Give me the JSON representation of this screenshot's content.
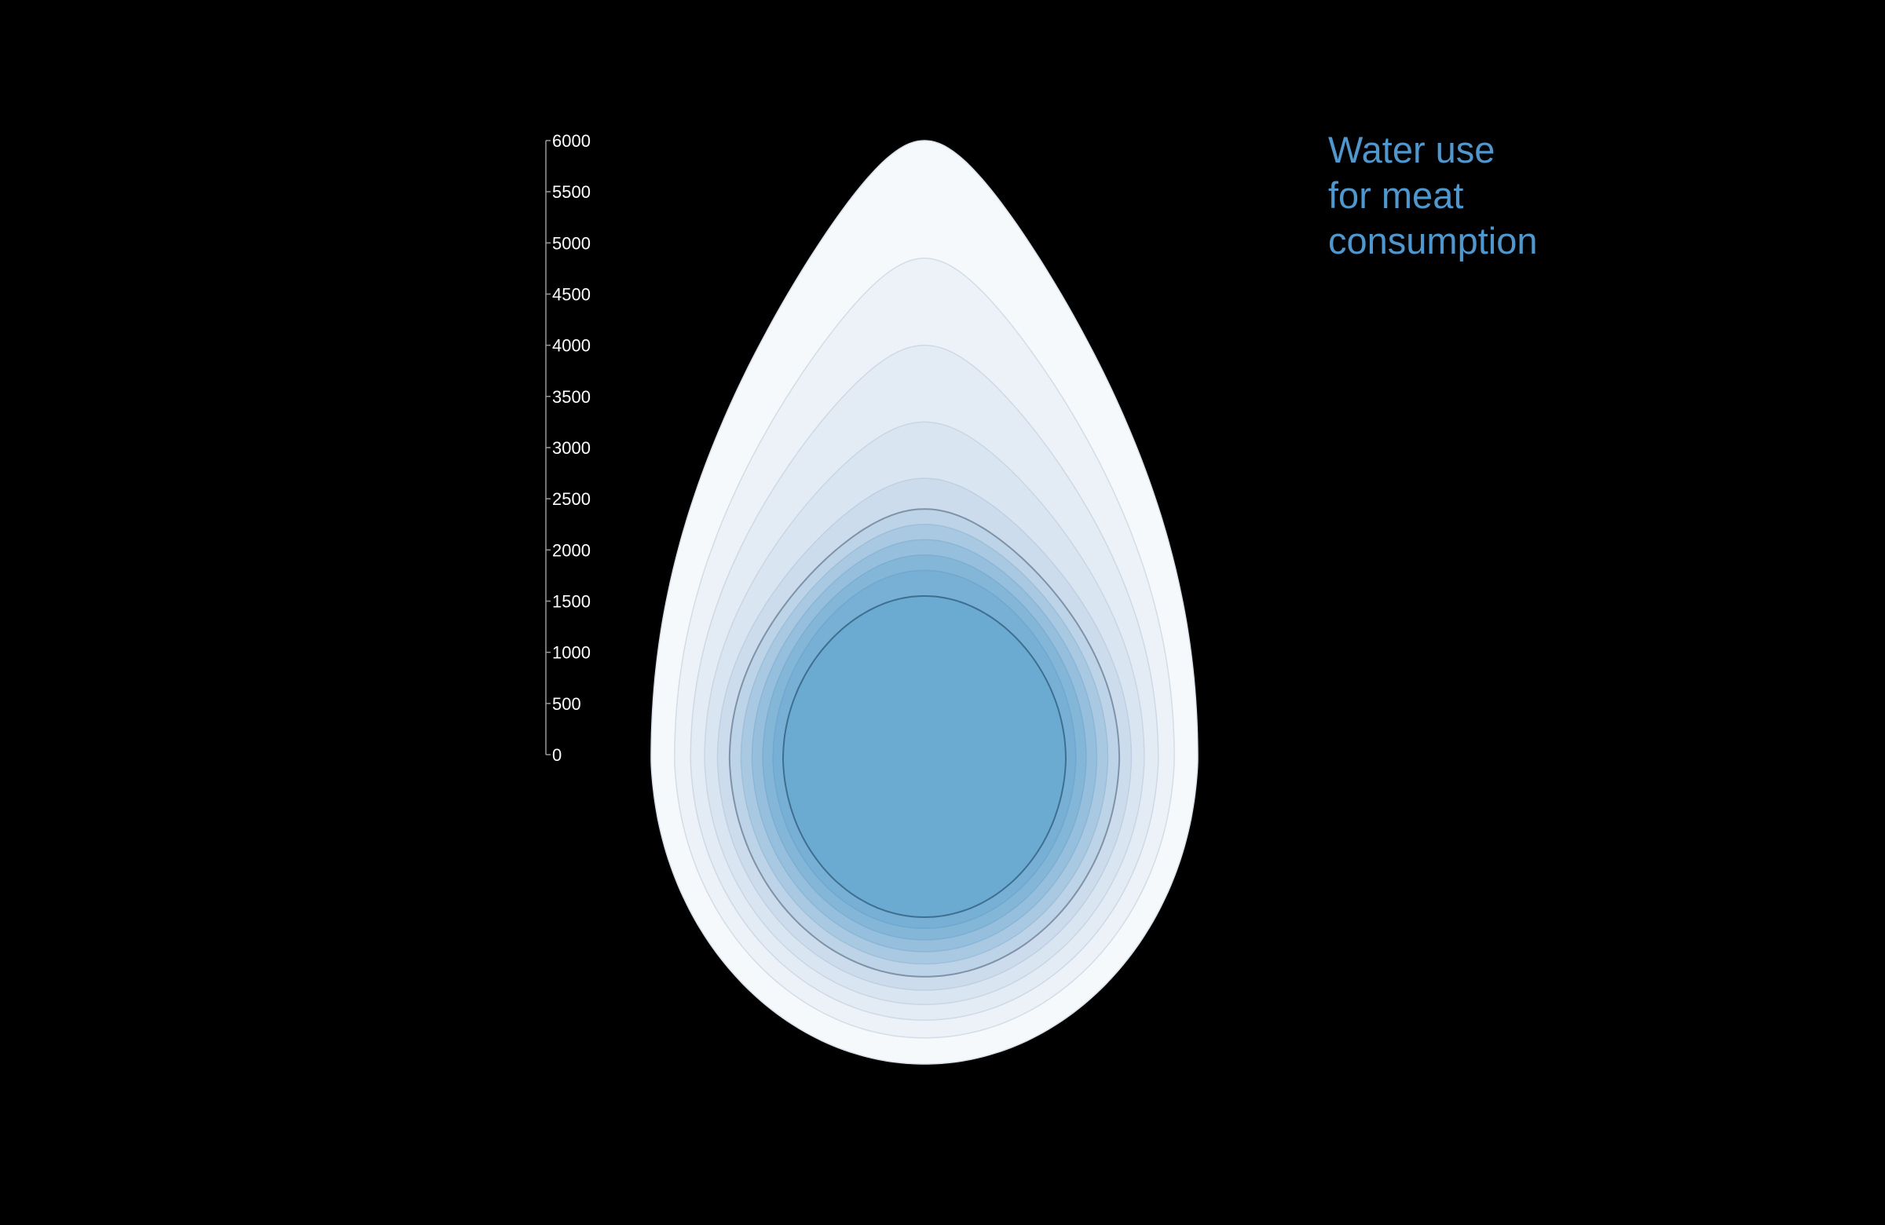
{
  "chart_data": {
    "type": "area",
    "title_lines": [
      "Water use",
      "for meat",
      "consumption"
    ],
    "title_color": "#4f97cc",
    "background": "#000000",
    "axis": {
      "ticks": [
        0,
        500,
        1000,
        1500,
        2000,
        2500,
        3000,
        3500,
        4000,
        4500,
        5000,
        5500,
        6000
      ],
      "ylim": [
        0,
        6000
      ]
    },
    "contour_levels": [
      {
        "top": 6000,
        "fill": "#f5f9fc",
        "stroke": "#d9e0e8"
      },
      {
        "top": 4850,
        "fill": "#edf2f8",
        "stroke": "#d4dce6"
      },
      {
        "top": 4000,
        "fill": "#e3ecf5",
        "stroke": "#cfd9e5"
      },
      {
        "top": 3250,
        "fill": "#d9e5f1",
        "stroke": "#c9d6e4"
      },
      {
        "top": 2700,
        "fill": "#ccdcec",
        "stroke": "#c0d0e2"
      },
      {
        "top": 2400,
        "fill": "#bdd3e8",
        "stroke": "#7f92a8"
      },
      {
        "top": 2250,
        "fill": "#a9c9e3",
        "stroke": "#9fbfd8"
      },
      {
        "top": 2100,
        "fill": "#95bfdd",
        "stroke": "#8cb6d6"
      },
      {
        "top": 1950,
        "fill": "#84b6d8",
        "stroke": "#7caed2"
      },
      {
        "top": 1800,
        "fill": "#78afd4",
        "stroke": "#70a8cf"
      },
      {
        "top": 1550,
        "fill": "#6cabd1",
        "stroke": "#3d6f91"
      }
    ]
  }
}
